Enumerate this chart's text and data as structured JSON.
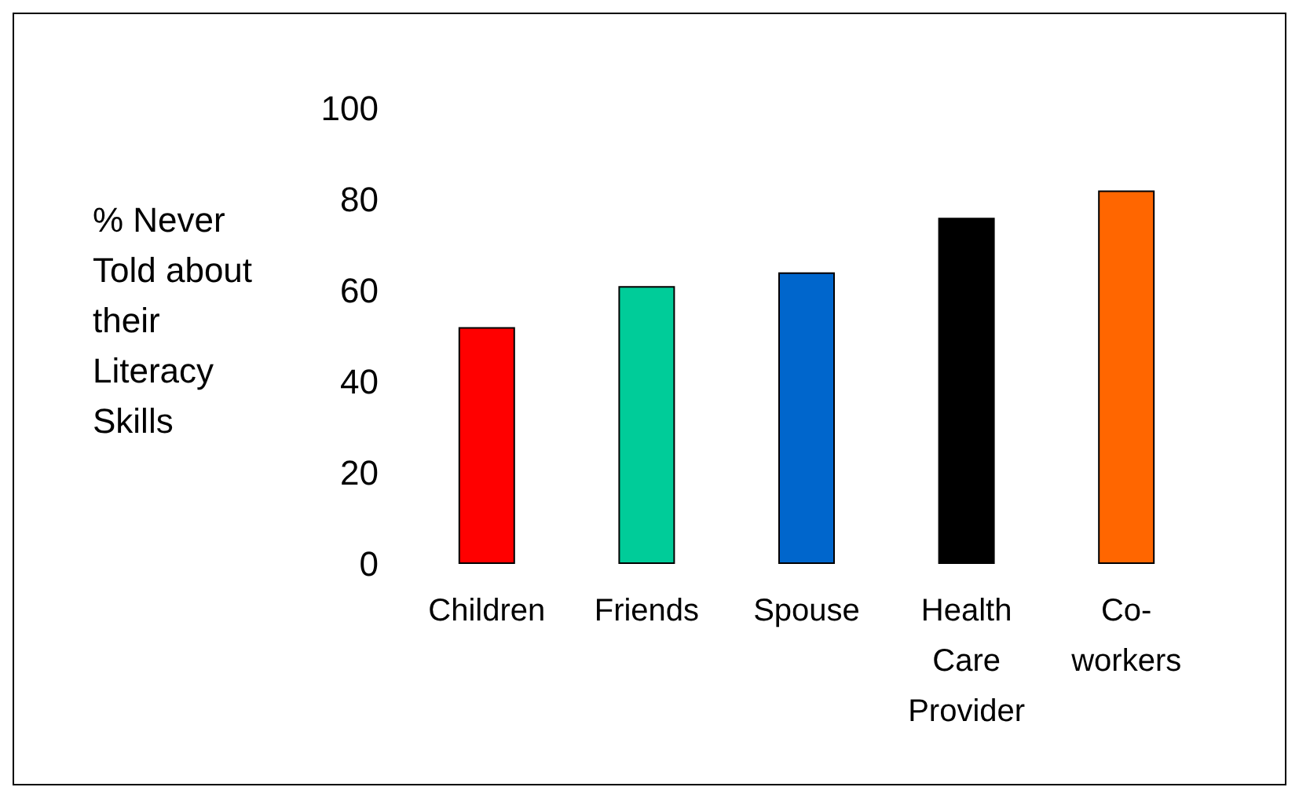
{
  "chart_data": {
    "type": "bar",
    "ylabel": "% Never\nTold about\ntheir\nLiteracy\nSkills",
    "categories": [
      "Children",
      "Friends",
      "Spouse",
      "Health\nCare\nProvider",
      "Co-\nworkers"
    ],
    "values": [
      52,
      61,
      64,
      76,
      82
    ],
    "colors": [
      "#ff0000",
      "#00cc99",
      "#0066cc",
      "#000000",
      "#ff6600"
    ],
    "ylim": [
      0,
      100
    ],
    "yticks": [
      0,
      20,
      40,
      60,
      80,
      100
    ],
    "grid": false
  }
}
